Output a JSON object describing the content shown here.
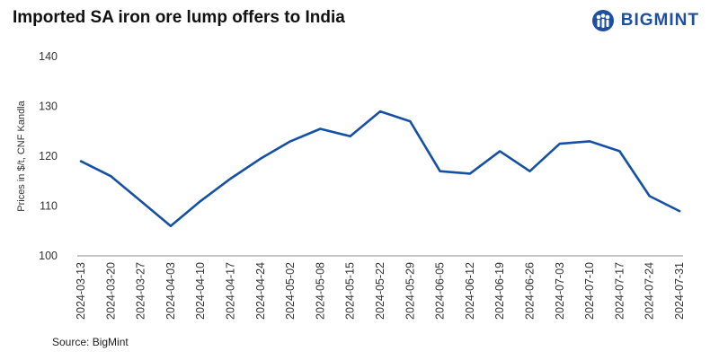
{
  "header": {
    "title": "Imported SA iron ore lump offers to India",
    "brand": "BIGMINT"
  },
  "footer": {
    "source": "Source: BigMint"
  },
  "chart_data": {
    "type": "line",
    "title": "Imported SA iron ore lump offers to India",
    "xlabel": "",
    "ylabel": "Prices in $/t, CNF Kandla",
    "ylim": [
      100,
      140
    ],
    "yticks": [
      100,
      110,
      120,
      130,
      140
    ],
    "grid": false,
    "line_color": "#1650a3",
    "x": [
      "2024-03-13",
      "2024-03-20",
      "2024-03-27",
      "2024-04-03",
      "2024-04-10",
      "2024-04-17",
      "2024-04-24",
      "2024-05-02",
      "2024-05-08",
      "2024-05-15",
      "2024-05-22",
      "2024-05-29",
      "2024-06-05",
      "2024-06-12",
      "2024-06-19",
      "2024-06-26",
      "2024-07-03",
      "2024-07-10",
      "2024-07-17",
      "2024-07-24",
      "2024-07-31"
    ],
    "series": [
      {
        "name": "",
        "values": [
          119,
          116,
          111,
          106,
          111,
          115.5,
          119.5,
          123,
          125.5,
          124,
          129,
          127,
          117,
          116.5,
          121,
          117,
          122.5,
          123,
          121,
          112,
          109
        ]
      }
    ]
  }
}
